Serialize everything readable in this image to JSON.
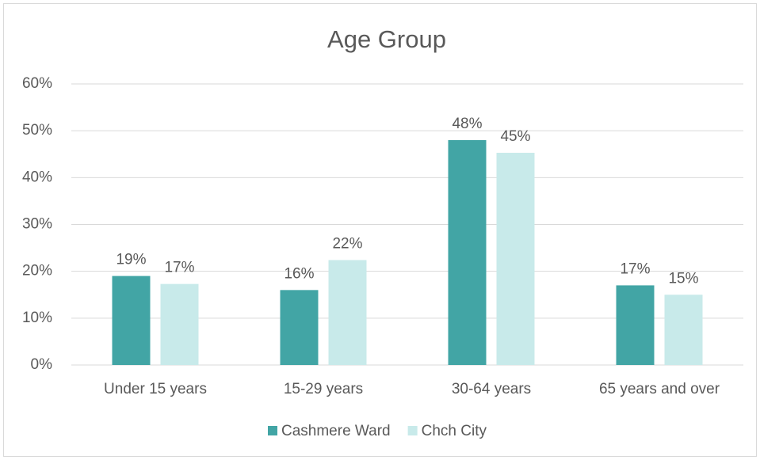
{
  "chart_data": {
    "type": "bar",
    "title": "Age Group",
    "categories": [
      "Under 15 years",
      "15-29 years",
      "30-64 years",
      "65 years and over"
    ],
    "series": [
      {
        "name": "Cashmere Ward",
        "color": "#42a5a5",
        "values": [
          19,
          16,
          48,
          17
        ],
        "value_labels": [
          "19%",
          "16%",
          "48%",
          "17%"
        ]
      },
      {
        "name": "Chch City",
        "color": "#c8eaea",
        "values": [
          17.3,
          22.4,
          45.3,
          15
        ],
        "value_labels": [
          "17%",
          "22%",
          "45%",
          "15%"
        ]
      }
    ],
    "ylim": [
      0,
      60
    ],
    "yticks": [
      {
        "value": 0,
        "label": "0%"
      },
      {
        "value": 10,
        "label": "10%"
      },
      {
        "value": 20,
        "label": "20%"
      },
      {
        "value": 30,
        "label": "30%"
      },
      {
        "value": 40,
        "label": "40%"
      },
      {
        "value": 50,
        "label": "50%"
      },
      {
        "value": 60,
        "label": "60%"
      }
    ],
    "grid": true,
    "legend": "bottom"
  }
}
